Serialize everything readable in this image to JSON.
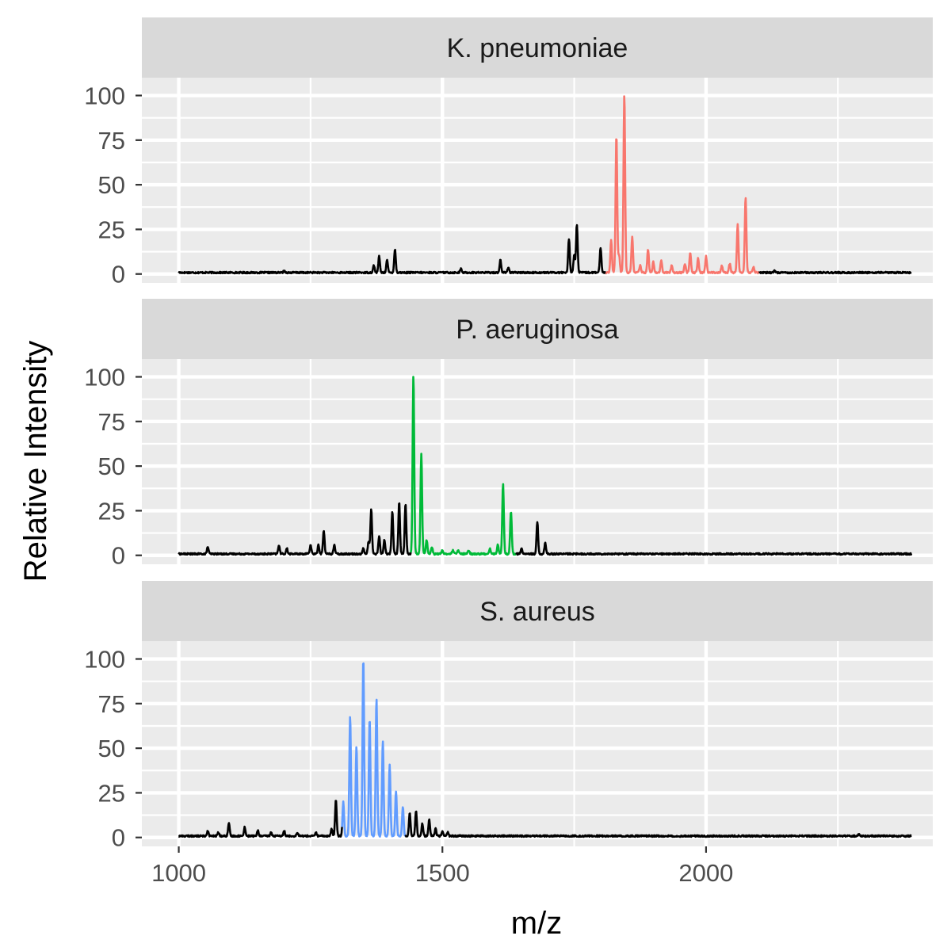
{
  "chart_data": {
    "type": "line",
    "xlabel": "m/z",
    "ylabel": "Relative Intensity",
    "xlim": [
      930,
      2430
    ],
    "ylim": [
      -5,
      110
    ],
    "x_ticks": [
      1000,
      1500,
      2000
    ],
    "y_ticks": [
      0,
      25,
      50,
      75,
      100
    ],
    "grid": true,
    "background_color": "#ebebeb",
    "baseline_color": "#000000",
    "panels": [
      {
        "name": "K. pneumoniae",
        "highlight_color": "#f8766d",
        "highlight_range": [
          1810,
          2100
        ],
        "peaks": [
          {
            "x": 1200,
            "y": 1
          },
          {
            "x": 1370,
            "y": 4
          },
          {
            "x": 1380,
            "y": 9
          },
          {
            "x": 1395,
            "y": 7
          },
          {
            "x": 1410,
            "y": 13
          },
          {
            "x": 1535,
            "y": 2
          },
          {
            "x": 1610,
            "y": 7
          },
          {
            "x": 1625,
            "y": 3
          },
          {
            "x": 1740,
            "y": 19
          },
          {
            "x": 1750,
            "y": 10
          },
          {
            "x": 1755,
            "y": 27
          },
          {
            "x": 1800,
            "y": 14
          },
          {
            "x": 1820,
            "y": 18
          },
          {
            "x": 1830,
            "y": 77
          },
          {
            "x": 1835,
            "y": 10
          },
          {
            "x": 1845,
            "y": 100
          },
          {
            "x": 1860,
            "y": 20
          },
          {
            "x": 1875,
            "y": 4
          },
          {
            "x": 1890,
            "y": 13
          },
          {
            "x": 1900,
            "y": 6
          },
          {
            "x": 1915,
            "y": 7
          },
          {
            "x": 1935,
            "y": 4
          },
          {
            "x": 1960,
            "y": 5
          },
          {
            "x": 1970,
            "y": 11
          },
          {
            "x": 1985,
            "y": 8
          },
          {
            "x": 2000,
            "y": 9
          },
          {
            "x": 2030,
            "y": 4
          },
          {
            "x": 2045,
            "y": 5
          },
          {
            "x": 2060,
            "y": 27
          },
          {
            "x": 2075,
            "y": 42
          },
          {
            "x": 2090,
            "y": 3
          },
          {
            "x": 2130,
            "y": 1
          }
        ]
      },
      {
        "name": "P. aeruginosa",
        "highlight_color": "#00ba38",
        "highlight_range": [
          1440,
          1640
        ],
        "peaks": [
          {
            "x": 1055,
            "y": 4
          },
          {
            "x": 1190,
            "y": 5
          },
          {
            "x": 1205,
            "y": 3
          },
          {
            "x": 1250,
            "y": 5
          },
          {
            "x": 1265,
            "y": 5
          },
          {
            "x": 1275,
            "y": 13
          },
          {
            "x": 1295,
            "y": 5
          },
          {
            "x": 1350,
            "y": 3
          },
          {
            "x": 1360,
            "y": 7
          },
          {
            "x": 1365,
            "y": 25
          },
          {
            "x": 1380,
            "y": 10
          },
          {
            "x": 1390,
            "y": 8
          },
          {
            "x": 1405,
            "y": 24
          },
          {
            "x": 1418,
            "y": 29
          },
          {
            "x": 1430,
            "y": 28
          },
          {
            "x": 1445,
            "y": 100
          },
          {
            "x": 1460,
            "y": 56
          },
          {
            "x": 1470,
            "y": 8
          },
          {
            "x": 1480,
            "y": 4
          },
          {
            "x": 1500,
            "y": 2
          },
          {
            "x": 1520,
            "y": 2
          },
          {
            "x": 1530,
            "y": 2
          },
          {
            "x": 1550,
            "y": 2
          },
          {
            "x": 1590,
            "y": 3
          },
          {
            "x": 1605,
            "y": 5
          },
          {
            "x": 1615,
            "y": 39
          },
          {
            "x": 1630,
            "y": 24
          },
          {
            "x": 1650,
            "y": 3
          },
          {
            "x": 1680,
            "y": 18
          },
          {
            "x": 1695,
            "y": 6
          }
        ]
      },
      {
        "name": "S. aureus",
        "highlight_color": "#619cff",
        "highlight_range": [
          1310,
          1430
        ],
        "peaks": [
          {
            "x": 1055,
            "y": 3
          },
          {
            "x": 1075,
            "y": 2
          },
          {
            "x": 1095,
            "y": 7
          },
          {
            "x": 1125,
            "y": 5
          },
          {
            "x": 1150,
            "y": 3
          },
          {
            "x": 1175,
            "y": 2
          },
          {
            "x": 1200,
            "y": 3
          },
          {
            "x": 1225,
            "y": 2
          },
          {
            "x": 1260,
            "y": 2
          },
          {
            "x": 1290,
            "y": 4
          },
          {
            "x": 1298,
            "y": 20
          },
          {
            "x": 1312,
            "y": 19
          },
          {
            "x": 1325,
            "y": 67
          },
          {
            "x": 1337,
            "y": 50
          },
          {
            "x": 1350,
            "y": 100
          },
          {
            "x": 1362,
            "y": 66
          },
          {
            "x": 1375,
            "y": 77
          },
          {
            "x": 1387,
            "y": 53
          },
          {
            "x": 1400,
            "y": 40
          },
          {
            "x": 1412,
            "y": 25
          },
          {
            "x": 1425,
            "y": 16
          },
          {
            "x": 1438,
            "y": 13
          },
          {
            "x": 1450,
            "y": 14
          },
          {
            "x": 1462,
            "y": 7
          },
          {
            "x": 1475,
            "y": 9
          },
          {
            "x": 1487,
            "y": 4
          },
          {
            "x": 1500,
            "y": 3
          },
          {
            "x": 1510,
            "y": 2
          },
          {
            "x": 2290,
            "y": 1
          }
        ]
      }
    ]
  }
}
